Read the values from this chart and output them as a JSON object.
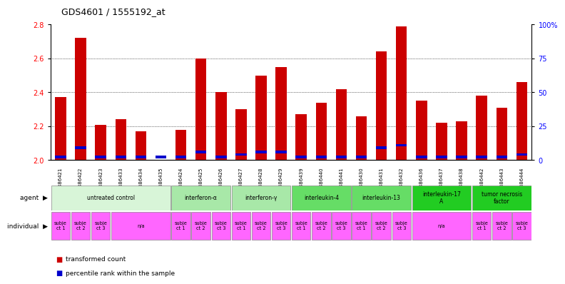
{
  "title": "GDS4601 / 1555192_at",
  "samples": [
    "GSM886421",
    "GSM886422",
    "GSM886423",
    "GSM886433",
    "GSM886434",
    "GSM886435",
    "GSM886424",
    "GSM886425",
    "GSM886426",
    "GSM886427",
    "GSM886428",
    "GSM886429",
    "GSM886439",
    "GSM886440",
    "GSM886441",
    "GSM886430",
    "GSM886431",
    "GSM886432",
    "GSM886436",
    "GSM886437",
    "GSM886438",
    "GSM886442",
    "GSM886443",
    "GSM886444"
  ],
  "red_values": [
    2.37,
    2.72,
    2.21,
    2.24,
    2.17,
    2.0,
    2.18,
    2.6,
    2.4,
    2.3,
    2.5,
    2.55,
    2.27,
    2.34,
    2.42,
    2.26,
    2.64,
    2.79,
    2.35,
    2.22,
    2.23,
    2.38,
    2.31,
    2.46
  ],
  "blue_heights": [
    0.015,
    0.015,
    0.015,
    0.015,
    0.015,
    0.015,
    0.015,
    0.015,
    0.015,
    0.015,
    0.015,
    0.015,
    0.015,
    0.015,
    0.015,
    0.015,
    0.015,
    0.015,
    0.015,
    0.015,
    0.015,
    0.015,
    0.015,
    0.015
  ],
  "blue_positions": [
    2.01,
    2.065,
    2.01,
    2.01,
    2.01,
    2.01,
    2.01,
    2.04,
    2.01,
    2.025,
    2.04,
    2.04,
    2.01,
    2.01,
    2.01,
    2.01,
    2.065,
    2.08,
    2.01,
    2.01,
    2.01,
    2.01,
    2.01,
    2.025
  ],
  "ylim_left": [
    2.0,
    2.8
  ],
  "ylim_right": [
    0,
    100
  ],
  "yticks_left": [
    2.0,
    2.2,
    2.4,
    2.6,
    2.8
  ],
  "yticks_right": [
    0,
    25,
    50,
    75,
    100
  ],
  "agents": [
    {
      "label": "untreated control",
      "start": 0,
      "end": 6,
      "color": "#d8f5d8"
    },
    {
      "label": "interferon-α",
      "start": 6,
      "end": 9,
      "color": "#a8e8a8"
    },
    {
      "label": "interferon-γ",
      "start": 9,
      "end": 12,
      "color": "#a8e8a8"
    },
    {
      "label": "interleukin-4",
      "start": 12,
      "end": 15,
      "color": "#66dd66"
    },
    {
      "label": "interleukin-13",
      "start": 15,
      "end": 18,
      "color": "#66dd66"
    },
    {
      "label": "interleukin-17\nA",
      "start": 18,
      "end": 21,
      "color": "#22cc22"
    },
    {
      "label": "tumor necrosis\nfactor",
      "start": 21,
      "end": 24,
      "color": "#22cc22"
    }
  ],
  "individuals": [
    {
      "label": "subje\nct 1",
      "start": 0,
      "end": 1,
      "color": "#ff66ff"
    },
    {
      "label": "subje\nct 2",
      "start": 1,
      "end": 2,
      "color": "#ff66ff"
    },
    {
      "label": "subje\nct 3",
      "start": 2,
      "end": 3,
      "color": "#ff66ff"
    },
    {
      "label": "n/a",
      "start": 3,
      "end": 6,
      "color": "#ff66ff"
    },
    {
      "label": "subje\nct 1",
      "start": 6,
      "end": 7,
      "color": "#ff66ff"
    },
    {
      "label": "subje\nct 2",
      "start": 7,
      "end": 8,
      "color": "#ff66ff"
    },
    {
      "label": "subje\nct 3",
      "start": 8,
      "end": 9,
      "color": "#ff66ff"
    },
    {
      "label": "subje\nct 1",
      "start": 9,
      "end": 10,
      "color": "#ff66ff"
    },
    {
      "label": "subje\nct 2",
      "start": 10,
      "end": 11,
      "color": "#ff66ff"
    },
    {
      "label": "subje\nct 3",
      "start": 11,
      "end": 12,
      "color": "#ff66ff"
    },
    {
      "label": "subje\nct 1",
      "start": 12,
      "end": 13,
      "color": "#ff66ff"
    },
    {
      "label": "subje\nct 2",
      "start": 13,
      "end": 14,
      "color": "#ff66ff"
    },
    {
      "label": "subje\nct 3",
      "start": 14,
      "end": 15,
      "color": "#ff66ff"
    },
    {
      "label": "subje\nct 1",
      "start": 15,
      "end": 16,
      "color": "#ff66ff"
    },
    {
      "label": "subje\nct 2",
      "start": 16,
      "end": 17,
      "color": "#ff66ff"
    },
    {
      "label": "subje\nct 3",
      "start": 17,
      "end": 18,
      "color": "#ff66ff"
    },
    {
      "label": "n/a",
      "start": 18,
      "end": 21,
      "color": "#ff66ff"
    },
    {
      "label": "subje\nct 1",
      "start": 21,
      "end": 22,
      "color": "#ff66ff"
    },
    {
      "label": "subje\nct 2",
      "start": 22,
      "end": 23,
      "color": "#ff66ff"
    },
    {
      "label": "subje\nct 3",
      "start": 23,
      "end": 24,
      "color": "#ff66ff"
    }
  ],
  "bar_color_red": "#cc0000",
  "bar_color_blue": "#0000cc",
  "bar_width": 0.55,
  "background_color": "#ffffff",
  "title_fontsize": 9,
  "legend_items": [
    {
      "color": "#cc0000",
      "label": "transformed count"
    },
    {
      "color": "#0000cc",
      "label": "percentile rank within the sample"
    }
  ]
}
